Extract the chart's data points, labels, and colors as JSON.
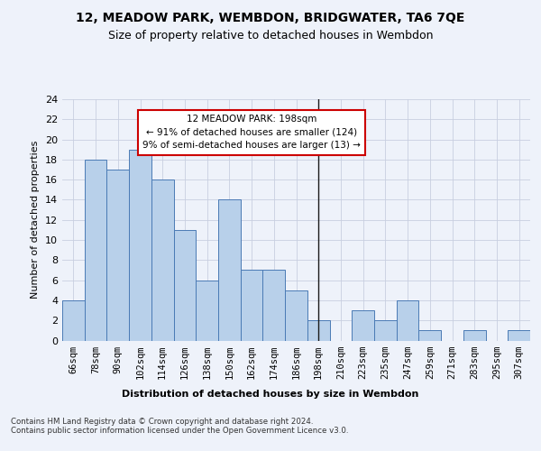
{
  "title1": "12, MEADOW PARK, WEMBDON, BRIDGWATER, TA6 7QE",
  "title2": "Size of property relative to detached houses in Wembdon",
  "xlabel": "Distribution of detached houses by size in Wembdon",
  "ylabel": "Number of detached properties",
  "footnote": "Contains HM Land Registry data © Crown copyright and database right 2024.\nContains public sector information licensed under the Open Government Licence v3.0.",
  "categories": [
    "66sqm",
    "78sqm",
    "90sqm",
    "102sqm",
    "114sqm",
    "126sqm",
    "138sqm",
    "150sqm",
    "162sqm",
    "174sqm",
    "186sqm",
    "198sqm",
    "210sqm",
    "223sqm",
    "235sqm",
    "247sqm",
    "259sqm",
    "271sqm",
    "283sqm",
    "295sqm",
    "307sqm"
  ],
  "values": [
    4,
    18,
    17,
    19,
    16,
    11,
    6,
    14,
    7,
    7,
    5,
    2,
    0,
    3,
    2,
    4,
    1,
    0,
    1,
    0,
    1
  ],
  "bar_color": "#b8d0ea",
  "bar_edge_color": "#4a7ab5",
  "vline_x_index": 11,
  "vline_color": "#1a1a1a",
  "annotation_title": "12 MEADOW PARK: 198sqm",
  "annotation_line1": "← 91% of detached houses are smaller (124)",
  "annotation_line2": "9% of semi-detached houses are larger (13) →",
  "annotation_box_color": "#ffffff",
  "annotation_box_edge": "#cc0000",
  "ylim": [
    0,
    24
  ],
  "yticks": [
    0,
    2,
    4,
    6,
    8,
    10,
    12,
    14,
    16,
    18,
    20,
    22,
    24
  ],
  "background_color": "#eef2fa",
  "grid_color": "#c8cfe0",
  "title1_fontsize": 10,
  "title2_fontsize": 9
}
